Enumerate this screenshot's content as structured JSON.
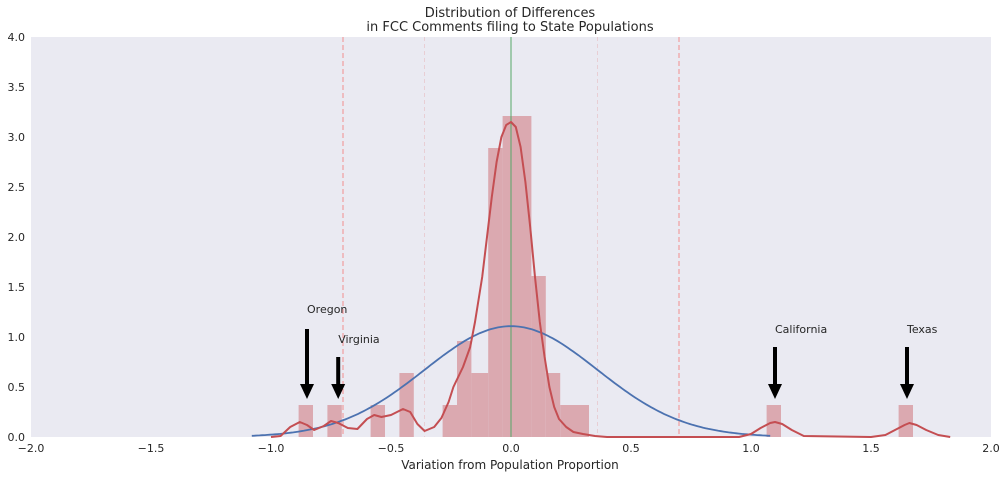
{
  "chart_data": {
    "type": "histogram",
    "title_line1": "Distribution of Differences",
    "title_line2": "in FCC Comments filing to State Populations",
    "xlabel": "Variation from Population Proportion",
    "ylabel": "",
    "xlim": [
      -2.0,
      2.0
    ],
    "ylim": [
      0.0,
      4.0
    ],
    "xticks": [
      "−2.0",
      "−1.5",
      "−1.0",
      "−0.5",
      "0.0",
      "0.5",
      "1.0",
      "1.5",
      "2.0"
    ],
    "xtick_values": [
      -2.0,
      -1.5,
      -1.0,
      -0.5,
      0.0,
      0.5,
      1.0,
      1.5,
      2.0
    ],
    "yticks": [
      "0.0",
      "0.5",
      "1.0",
      "1.5",
      "2.0",
      "2.5",
      "3.0",
      "3.5",
      "4.0"
    ],
    "ytick_values": [
      0.0,
      0.5,
      1.0,
      1.5,
      2.0,
      2.5,
      3.0,
      3.5,
      4.0
    ],
    "grid": false,
    "background": "#eaeaf2",
    "histogram": {
      "color": "#dba9b0",
      "bars": [
        {
          "x0": -0.885,
          "x1": -0.825,
          "height": 0.32
        },
        {
          "x0": -0.765,
          "x1": -0.705,
          "height": 0.32
        },
        {
          "x0": -0.585,
          "x1": -0.525,
          "height": 0.32
        },
        {
          "x0": -0.465,
          "x1": -0.405,
          "height": 0.64
        },
        {
          "x0": -0.285,
          "x1": -0.225,
          "height": 0.32
        },
        {
          "x0": -0.225,
          "x1": -0.165,
          "height": 0.96
        },
        {
          "x0": -0.165,
          "x1": -0.095,
          "height": 0.64
        },
        {
          "x0": -0.095,
          "x1": -0.035,
          "height": 2.89
        },
        {
          "x0": -0.035,
          "x1": 0.085,
          "height": 3.21
        },
        {
          "x0": 0.085,
          "x1": 0.145,
          "height": 1.61
        },
        {
          "x0": 0.145,
          "x1": 0.205,
          "height": 0.64
        },
        {
          "x0": 0.205,
          "x1": 0.325,
          "height": 0.32
        },
        {
          "x0": 1.065,
          "x1": 1.125,
          "height": 0.32
        },
        {
          "x0": 1.615,
          "x1": 1.675,
          "height": 0.32
        }
      ]
    },
    "kde": {
      "color": "#c44e52",
      "x": [
        -1.0,
        -0.96,
        -0.92,
        -0.88,
        -0.85,
        -0.82,
        -0.78,
        -0.75,
        -0.72,
        -0.68,
        -0.64,
        -0.6,
        -0.57,
        -0.54,
        -0.5,
        -0.45,
        -0.42,
        -0.39,
        -0.36,
        -0.32,
        -0.29,
        -0.26,
        -0.24,
        -0.22,
        -0.2,
        -0.17,
        -0.15,
        -0.12,
        -0.1,
        -0.08,
        -0.06,
        -0.04,
        -0.02,
        0.0,
        0.02,
        0.04,
        0.06,
        0.08,
        0.1,
        0.12,
        0.14,
        0.16,
        0.18,
        0.2,
        0.23,
        0.26,
        0.3,
        0.35,
        0.4,
        0.6,
        0.95,
        1.0,
        1.04,
        1.08,
        1.1,
        1.13,
        1.17,
        1.22,
        1.5,
        1.56,
        1.6,
        1.64,
        1.66,
        1.69,
        1.73,
        1.78,
        1.83
      ],
      "y": [
        0.0,
        0.01,
        0.1,
        0.15,
        0.12,
        0.07,
        0.11,
        0.16,
        0.14,
        0.09,
        0.08,
        0.18,
        0.22,
        0.2,
        0.22,
        0.28,
        0.25,
        0.13,
        0.06,
        0.1,
        0.19,
        0.35,
        0.5,
        0.6,
        0.7,
        0.9,
        1.15,
        1.6,
        2.0,
        2.4,
        2.75,
        3.0,
        3.12,
        3.15,
        3.1,
        2.9,
        2.55,
        2.1,
        1.6,
        1.15,
        0.8,
        0.5,
        0.3,
        0.18,
        0.1,
        0.05,
        0.03,
        0.01,
        0.0,
        0.0,
        0.0,
        0.03,
        0.09,
        0.14,
        0.15,
        0.13,
        0.07,
        0.01,
        0.0,
        0.02,
        0.07,
        0.12,
        0.14,
        0.12,
        0.07,
        0.02,
        0.0
      ]
    },
    "normal_fit": {
      "color": "#4c72b0",
      "mean": 0.0,
      "sd": 0.36,
      "x_range": [
        -1.08,
        1.08
      ]
    },
    "reference_lines": {
      "center": {
        "x": 0.0,
        "color": "#55a868"
      },
      "dashed": {
        "x": [
          -0.7,
          0.7
        ],
        "color": "#f28e8e"
      },
      "faint": {
        "x": [
          -0.36,
          0.36
        ],
        "color": "#e8c7cc"
      }
    },
    "annotations": [
      {
        "text": "Oregon",
        "x": -0.85,
        "text_y": 1.2,
        "arrow_top": 1.08,
        "arrow_tip": 0.38
      },
      {
        "text": "Virginia",
        "x": -0.72,
        "text_y": 0.9,
        "arrow_top": 0.8,
        "arrow_tip": 0.38
      },
      {
        "text": "California",
        "x": 1.1,
        "text_y": 1.0,
        "arrow_top": 0.9,
        "arrow_tip": 0.38
      },
      {
        "text": "Texas",
        "x": 1.65,
        "text_y": 1.0,
        "arrow_top": 0.9,
        "arrow_tip": 0.38
      }
    ]
  }
}
